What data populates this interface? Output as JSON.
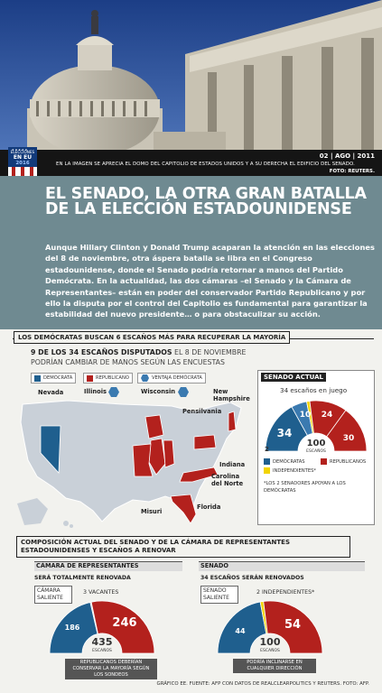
{
  "photo": {
    "date": "02 | AGO | 2011",
    "caption": "En la imagen se aprecia el domo del Capitolio de Estados Unidos y a su derecha el edificio del Senado.",
    "credit": "FOTO: REUTERS."
  },
  "badge": {
    "label": "ELECCIONES",
    "line1": "EN EU",
    "year": "2016"
  },
  "header": {
    "title": "EL SENADO, LA OTRA GRAN BATALLA DE LA ELECCIÓN ESTADOUNIDENSE",
    "lead": "Aunque Hillary Clinton y Donald Trump acaparan la atención en las elecciones del 8 de noviembre, otra áspera batalla se libra en el Congreso estadounidense, donde el Senado podría retornar a manos del Partido Demócrata. En la actualidad, las dos cámaras –el Senado y la Cámara de Representantes– están en poder del conservador Partido Republicano y por ello la disputa por el control del Capitolio es fundamental para garantizar la estabilidad del nuevo presidente… o para obstaculizar su acción."
  },
  "section1": {
    "title": "LOS DEMÓCRATAS BUSCAN 6 ESCAÑOS MÁS PARA RECUPERAR LA MAYORÍA",
    "subtitle_bold": "9 DE LOS 34 ESCAÑOS DISPUTADOS",
    "subtitle_rest": " EL 8 DE NOVIEMBRE",
    "subtitle_line2": "PODRÍAN CAMBIAR DE MANOS SEGÚN LAS ENCUESTAS",
    "legend": {
      "dem": "DEMÓCRATA",
      "rep": "REPUBLICANO",
      "adv": "VENTAJA DEMÓCRATA"
    },
    "states": [
      "Nevada",
      "Illinois",
      "Wisconsin",
      "New Hampshire",
      "Pensilvania",
      "Indiana",
      "Carolina del Norte",
      "Misuri",
      "Florida"
    ],
    "colors": {
      "dem": "#1f5f8e",
      "rep": "#b3211d",
      "adv": "#3b7ab0",
      "ind": "#f2d400"
    }
  },
  "senado_actual": {
    "head": "SENADO ACTUAL",
    "seats_label": "34 escaños en juego",
    "dem_total": "34",
    "dem_play": "10",
    "rep_play": "24",
    "rep_total": "30",
    "ind": "2",
    "center": "100",
    "center_label": "ESCAÑOS",
    "legend_dem": "DEMÓCRATAS",
    "legend_rep": "REPUBLICANOS",
    "legend_ind": "INDEPENDIENTES*",
    "footnote": "*LOS 2 SENADORES APOYAN A LOS DEMÓCRATAS"
  },
  "chart_data": [
    {
      "type": "pie",
      "title": "SENADO ACTUAL",
      "labels": [
        "Demócratas",
        "Demócratas en juego",
        "Independientes",
        "Republicanos en juego",
        "Republicanos"
      ],
      "values": [
        34,
        10,
        2,
        24,
        30
      ]
    },
    {
      "type": "pie",
      "title": "CÁMARA DE REPRESENTANTES",
      "labels": [
        "Demócratas",
        "Vacantes",
        "Republicanos"
      ],
      "values": [
        186,
        3,
        246
      ]
    },
    {
      "type": "pie",
      "title": "SENADO",
      "labels": [
        "Demócratas",
        "Independientes",
        "Republicanos"
      ],
      "values": [
        44,
        2,
        54
      ]
    }
  ],
  "section2": {
    "title": "COMPOSICIÓN ACTUAL DEL SENADO Y DE LA CÁMARA DE REPRESENTANTES ESTADOUNIDENSES Y ESCAÑOS A RENOVAR",
    "camara": {
      "head": "CÁMARA DE REPRESENTANTES",
      "renew": "SERÁ TOTALMENTE RENOVADA",
      "saliente": "CÁMARA SALIENTE",
      "vacantes": "3 VACANTES",
      "dem": "186",
      "rep": "246",
      "total": "435",
      "total_label": "ESCAÑOS",
      "note": "REPUBLICANOS DEBERÍAN CONSERVAR LA MAYORÍA SEGÚN LOS SONDEOS"
    },
    "senado": {
      "head": "SENADO",
      "renew": "34 ESCAÑOS SERÁN RENOVADOS",
      "saliente": "SENADO SALIENTE",
      "independientes": "2 INDEPENDIENTES*",
      "dem": "44",
      "rep": "54",
      "total": "100",
      "total_label": "ESCAÑOS",
      "note": "PODRÍA INCLINARSE EN CUALQUIER DIRECCIÓN"
    }
  },
  "footer": "GRÁFICO EE. FUENTE: AFP CON DATOS DE REALCLEARPOLITICS Y REUTERS. FOTO: AFP."
}
